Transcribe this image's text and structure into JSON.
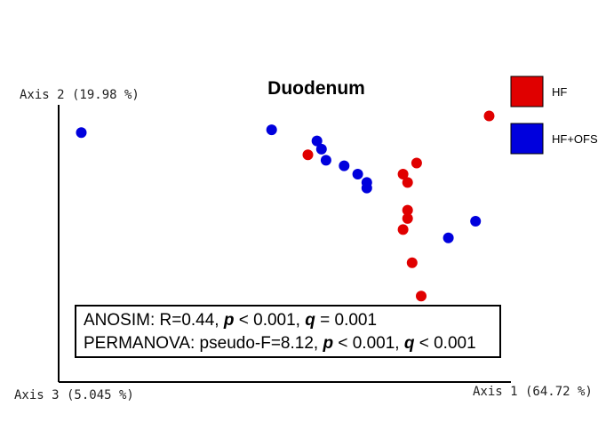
{
  "chart_data": {
    "type": "scatter",
    "title": "Duodenum",
    "axis_labels": {
      "y": "Axis 2 (19.98 %)",
      "x": "Axis 1 (64.72 %)",
      "z": "Axis 3 (5.045 %)"
    },
    "legend_position": "top-right",
    "grid": false,
    "series": [
      {
        "name": "HF",
        "color": "#e00000",
        "points": [
          [
            0.55,
            0.82
          ],
          [
            0.95,
            0.96
          ],
          [
            0.79,
            0.79
          ],
          [
            0.76,
            0.75
          ],
          [
            0.77,
            0.72
          ],
          [
            0.77,
            0.62
          ],
          [
            0.77,
            0.59
          ],
          [
            0.76,
            0.55
          ],
          [
            0.78,
            0.43
          ],
          [
            0.8,
            0.31
          ],
          [
            0.6,
            0.2
          ]
        ]
      },
      {
        "name": "HF+OFS",
        "color": "#0000dd",
        "points": [
          [
            0.05,
            0.9
          ],
          [
            0.47,
            0.91
          ],
          [
            0.57,
            0.87
          ],
          [
            0.58,
            0.84
          ],
          [
            0.59,
            0.8
          ],
          [
            0.63,
            0.78
          ],
          [
            0.66,
            0.75
          ],
          [
            0.68,
            0.72
          ],
          [
            0.68,
            0.7
          ],
          [
            0.92,
            0.58
          ],
          [
            0.86,
            0.52
          ]
        ]
      }
    ],
    "statistics": {
      "anosim": {
        "prefix": "ANOSIM: R=0.44, ",
        "p_symbol": "p",
        "p_text": " < 0.001, ",
        "q_symbol": "q",
        "q_text": " = 0.001"
      },
      "permanova": {
        "prefix": "PERMANOVA: pseudo-F=8.12, ",
        "p_symbol": "p",
        "p_text": " < 0.001, ",
        "q_symbol": "q",
        "q_text": " < 0.001"
      }
    }
  }
}
